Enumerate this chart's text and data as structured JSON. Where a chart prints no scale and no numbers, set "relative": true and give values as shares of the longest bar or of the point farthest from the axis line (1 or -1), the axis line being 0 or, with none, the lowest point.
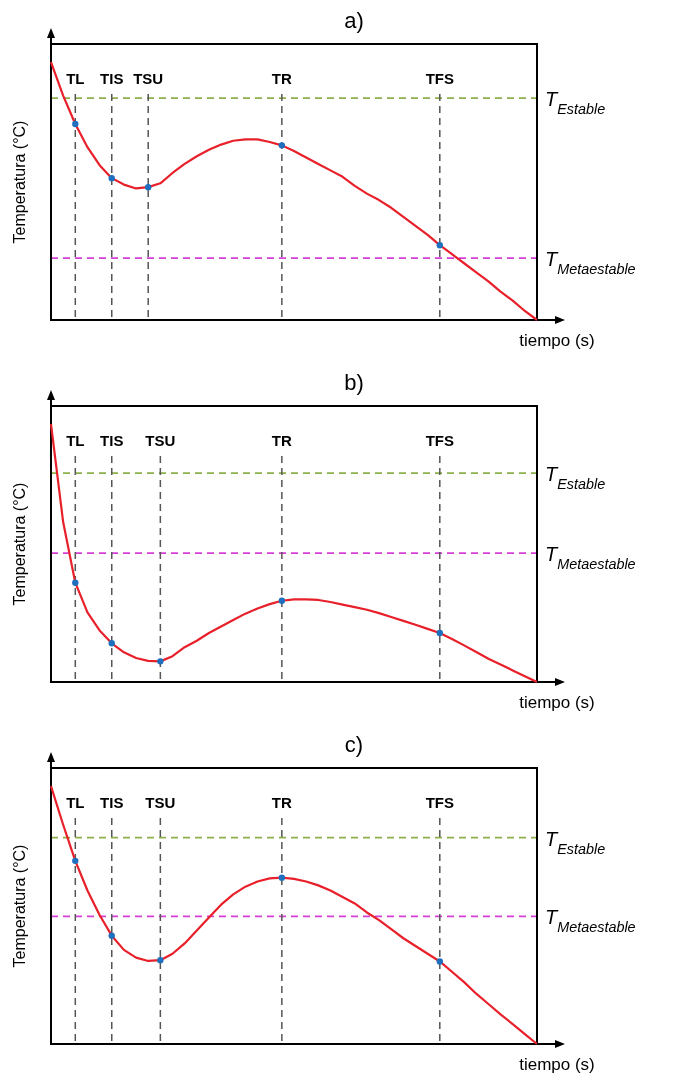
{
  "chart_data": [
    {
      "type": "line",
      "title": "a)",
      "xlabel": "tiempo (s)",
      "ylabel": "Temperatura (°C)",
      "relative": true,
      "tick_labels": "x",
      "grid": false,
      "legend": false,
      "categories": [
        null,
        null,
        "TL",
        null,
        null,
        "TIS",
        null,
        null,
        "TSU",
        null,
        null,
        null,
        null,
        null,
        null,
        null,
        null,
        null,
        null,
        "TR",
        null,
        null,
        null,
        null,
        null,
        null,
        null,
        null,
        null,
        null,
        null,
        null,
        "TFS",
        null,
        null,
        null,
        null,
        null,
        null,
        null,
        null
      ],
      "series": [
        {
          "color": "#e8202a",
          "marker": "none",
          "line_style": "solid",
          "values": [
            1,
            0.87,
            0.76,
            0.67,
            0.6,
            0.55,
            0.525,
            0.51,
            0.515,
            0.53,
            0.57,
            0.605,
            0.635,
            0.66,
            0.68,
            0.695,
            0.7,
            0.7,
            0.69,
            0.677,
            0.655,
            0.63,
            0.605,
            0.58,
            0.555,
            0.52,
            0.49,
            0.465,
            0.435,
            0.4,
            0.365,
            0.33,
            0.29,
            0.255,
            0.22,
            0.185,
            0.15,
            0.11,
            0.075,
            0.035,
            0
          ]
        },
        {
          "type": "scatter",
          "color": "#1f6fbf",
          "marker": "circle",
          "x": [
            "TL",
            "TIS",
            "TSU",
            "TR",
            "TFS"
          ],
          "values": [
            0.76,
            0.55,
            0.515,
            0.677,
            0.29
          ]
        }
      ],
      "ref_lines": [
        {
          "axis": "y",
          "value": 0.86,
          "label": "T$_{Estable}$",
          "color": "#8db04a",
          "line_style": "dashed"
        },
        {
          "axis": "y",
          "value": 0.24,
          "label": "T$_{Metaestable}$",
          "color": "#d63fd6",
          "line_style": "dashed"
        },
        {
          "axis": "x",
          "value": "TL",
          "color": "#555555",
          "line_style": "dashed"
        },
        {
          "axis": "x",
          "value": "TIS",
          "color": "#555555",
          "line_style": "dashed"
        },
        {
          "axis": "x",
          "value": "TSU",
          "color": "#555555",
          "line_style": "dashed"
        },
        {
          "axis": "x",
          "value": "TR",
          "color": "#555555",
          "line_style": "dashed"
        },
        {
          "axis": "x",
          "value": "TFS",
          "color": "#555555",
          "line_style": "dashed"
        }
      ]
    },
    {
      "type": "line",
      "title": "b)",
      "xlabel": "tiempo (s)",
      "ylabel": "Temperatura (°C)",
      "relative": true,
      "tick_labels": "x",
      "grid": false,
      "legend": false,
      "categories": [
        null,
        null,
        "TL",
        null,
        null,
        "TIS",
        null,
        null,
        null,
        "TSU",
        null,
        null,
        null,
        null,
        null,
        null,
        null,
        null,
        null,
        "TR",
        null,
        null,
        null,
        null,
        null,
        null,
        null,
        null,
        null,
        null,
        null,
        null,
        "TFS",
        null,
        null,
        null,
        null,
        null,
        null,
        null,
        null
      ],
      "series": [
        {
          "color": "#e8202a",
          "marker": "none",
          "line_style": "solid",
          "values": [
            1,
            0.62,
            0.385,
            0.27,
            0.2,
            0.15,
            0.115,
            0.093,
            0.082,
            0.08,
            0.1,
            0.135,
            0.16,
            0.19,
            0.215,
            0.24,
            0.265,
            0.285,
            0.302,
            0.315,
            0.32,
            0.32,
            0.318,
            0.31,
            0.3,
            0.29,
            0.28,
            0.267,
            0.252,
            0.237,
            0.222,
            0.206,
            0.19,
            0.167,
            0.142,
            0.116,
            0.09,
            0.068,
            0.045,
            0.022,
            0
          ]
        },
        {
          "type": "scatter",
          "color": "#1f6fbf",
          "marker": "circle",
          "x": [
            "TL",
            "TIS",
            "TSU",
            "TR",
            "TFS"
          ],
          "values": [
            0.385,
            0.15,
            0.08,
            0.315,
            0.19
          ]
        }
      ],
      "ref_lines": [
        {
          "axis": "y",
          "value": 0.81,
          "label": "T$_{Estable}$",
          "color": "#8db04a",
          "line_style": "dashed"
        },
        {
          "axis": "y",
          "value": 0.5,
          "label": "T$_{Metaestable}$",
          "color": "#d63fd6",
          "line_style": "dashed"
        },
        {
          "axis": "x",
          "value": "TL",
          "color": "#555555",
          "line_style": "dashed"
        },
        {
          "axis": "x",
          "value": "TIS",
          "color": "#555555",
          "line_style": "dashed"
        },
        {
          "axis": "x",
          "value": "TSU",
          "color": "#555555",
          "line_style": "dashed"
        },
        {
          "axis": "x",
          "value": "TR",
          "color": "#555555",
          "line_style": "dashed"
        },
        {
          "axis": "x",
          "value": "TFS",
          "color": "#555555",
          "line_style": "dashed"
        }
      ]
    },
    {
      "type": "line",
      "title": "c)",
      "xlabel": "tiempo (s)",
      "ylabel": "Temperatura (°C)",
      "relative": true,
      "tick_labels": "x",
      "grid": false,
      "legend": false,
      "categories": [
        null,
        null,
        "TL",
        null,
        null,
        "TIS",
        null,
        null,
        null,
        "TSU",
        null,
        null,
        null,
        null,
        null,
        null,
        null,
        null,
        null,
        "TR",
        null,
        null,
        null,
        null,
        null,
        null,
        null,
        null,
        null,
        null,
        null,
        null,
        "TFS",
        null,
        null,
        null,
        null,
        null,
        null,
        null,
        null
      ],
      "series": [
        {
          "color": "#e8202a",
          "marker": "none",
          "line_style": "solid",
          "values": [
            1,
            0.85,
            0.71,
            0.595,
            0.5,
            0.42,
            0.365,
            0.335,
            0.322,
            0.325,
            0.35,
            0.39,
            0.44,
            0.49,
            0.54,
            0.58,
            0.61,
            0.63,
            0.642,
            0.645,
            0.64,
            0.63,
            0.615,
            0.595,
            0.57,
            0.545,
            0.51,
            0.48,
            0.445,
            0.41,
            0.38,
            0.35,
            0.32,
            0.28,
            0.24,
            0.195,
            0.155,
            0.115,
            0.077,
            0.038,
            0
          ]
        },
        {
          "type": "scatter",
          "color": "#1f6fbf",
          "marker": "circle",
          "x": [
            "TL",
            "TIS",
            "TSU",
            "TR",
            "TFS"
          ],
          "values": [
            0.71,
            0.42,
            0.325,
            0.645,
            0.32
          ]
        }
      ],
      "ref_lines": [
        {
          "axis": "y",
          "value": 0.8,
          "label": "T$_{Estable}$",
          "color": "#8db04a",
          "line_style": "dashed"
        },
        {
          "axis": "y",
          "value": 0.495,
          "label": "T$_{Metaestable}$",
          "color": "#d63fd6",
          "line_style": "dashed"
        },
        {
          "axis": "x",
          "value": "TL",
          "color": "#555555",
          "line_style": "dashed"
        },
        {
          "axis": "x",
          "value": "TIS",
          "color": "#555555",
          "line_style": "dashed"
        },
        {
          "axis": "x",
          "value": "TSU",
          "color": "#555555",
          "line_style": "dashed"
        },
        {
          "axis": "x",
          "value": "TR",
          "color": "#555555",
          "line_style": "dashed"
        },
        {
          "axis": "x",
          "value": "TFS",
          "color": "#555555",
          "line_style": "dashed"
        }
      ]
    }
  ]
}
